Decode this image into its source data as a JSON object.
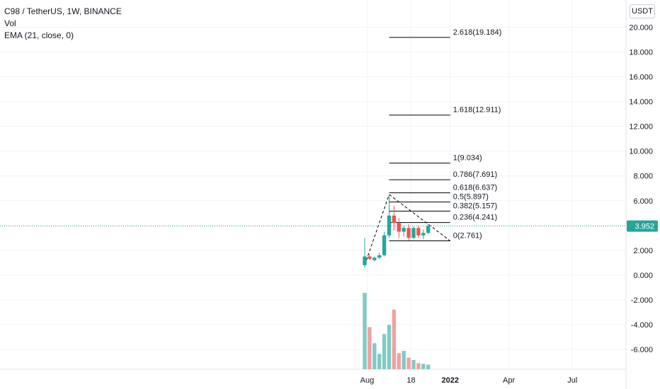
{
  "legend": {
    "title": "C98 / TetherUS, 1W, BINANCE",
    "vol_label": "Vol",
    "ema_label": "EMA (21, close, 0)"
  },
  "currency_label": "USDT",
  "last_price": "3.952",
  "colors": {
    "up": "#26a69a",
    "down": "#ef5350",
    "vol_up": "#80cbc4",
    "vol_down": "#f2a0a0",
    "grid": "#f0f3fa",
    "text": "#131722",
    "price_line": "#26a69a"
  },
  "chart_data": {
    "type": "candlestick",
    "symbol": "C98 / TetherUS",
    "interval": "1W",
    "exchange": "BINANCE",
    "y_axis": {
      "ticks": [
        "20.000",
        "18.000",
        "16.000",
        "14.000",
        "12.000",
        "10.000",
        "8.000",
        "6.000",
        "4.000",
        "2.000",
        "0.000",
        "-2.000",
        "-4.000",
        "-6.000"
      ],
      "tick_values": [
        20,
        18,
        16,
        14,
        12,
        10,
        8,
        6,
        4,
        2,
        0,
        -2,
        -4,
        -6
      ],
      "range": [
        -7.6,
        22.2
      ],
      "position": "right"
    },
    "x_axis": {
      "ticks": [
        "Aug",
        "18",
        "2022",
        "Apr",
        "Jul"
      ],
      "tick_weeks": [
        0.5,
        9.5,
        17.5,
        29.5,
        42.5
      ],
      "bold_ticks": [
        "2022"
      ]
    },
    "candles": [
      {
        "week": 0,
        "open": 0.8,
        "high": 3.0,
        "low": 0.6,
        "close": 1.5
      },
      {
        "week": 1,
        "open": 1.5,
        "high": 1.7,
        "low": 1.2,
        "close": 1.3
      },
      {
        "week": 2,
        "open": 1.2,
        "high": 1.5,
        "low": 1.1,
        "close": 1.4
      },
      {
        "week": 3,
        "open": 1.4,
        "high": 1.8,
        "low": 1.3,
        "close": 1.6
      },
      {
        "week": 4,
        "open": 1.6,
        "high": 3.5,
        "low": 1.5,
        "close": 3.2
      },
      {
        "week": 5,
        "open": 3.2,
        "high": 6.5,
        "low": 3.0,
        "close": 4.8
      },
      {
        "week": 6,
        "open": 4.8,
        "high": 5.6,
        "low": 3.6,
        "close": 4.2
      },
      {
        "week": 7,
        "open": 4.2,
        "high": 4.6,
        "low": 3.0,
        "close": 3.5
      },
      {
        "week": 8,
        "open": 3.5,
        "high": 4.0,
        "low": 3.1,
        "close": 3.8
      },
      {
        "week": 9,
        "open": 3.8,
        "high": 4.1,
        "low": 2.8,
        "close": 3.0
      },
      {
        "week": 10,
        "open": 3.0,
        "high": 3.9,
        "low": 2.9,
        "close": 3.8
      },
      {
        "week": 11,
        "open": 3.8,
        "high": 4.0,
        "low": 3.0,
        "close": 3.2
      },
      {
        "week": 12,
        "open": 3.2,
        "high": 3.7,
        "low": 2.9,
        "close": 3.4
      },
      {
        "week": 13,
        "open": 3.4,
        "high": 4.1,
        "low": 3.3,
        "close": 3.95
      }
    ],
    "volume": [
      1.0,
      0.55,
      0.34,
      0.2,
      0.46,
      0.58,
      0.78,
      0.21,
      0.24,
      0.15,
      0.12,
      0.08,
      0.07,
      0.06
    ],
    "fibonacci": [
      {
        "label": "2.618(19.184)",
        "value": 19.184
      },
      {
        "label": "1.618(12.911)",
        "value": 12.911
      },
      {
        "label": "1(9.034)",
        "value": 9.034
      },
      {
        "label": "0.786(7.691)",
        "value": 7.691
      },
      {
        "label": "0.618(6.637)",
        "value": 6.637
      },
      {
        "label": "0.5(5.897)",
        "value": 5.897
      },
      {
        "label": "0.382(5.157)",
        "value": 5.157
      },
      {
        "label": "0.236(4.241)",
        "value": 4.241
      },
      {
        "label": "0(2.761)",
        "value": 2.761
      }
    ],
    "trend_lines": [
      {
        "from": {
          "week": 0,
          "value": 0.8
        },
        "to": {
          "week": 5,
          "value": 6.5
        }
      },
      {
        "from": {
          "week": 5,
          "value": 6.5
        },
        "to": {
          "week": 17.5,
          "value": 2.761
        }
      }
    ],
    "fib_extent_weeks": [
      5,
      17.5
    ],
    "grid": true,
    "last_price": 3.952
  }
}
